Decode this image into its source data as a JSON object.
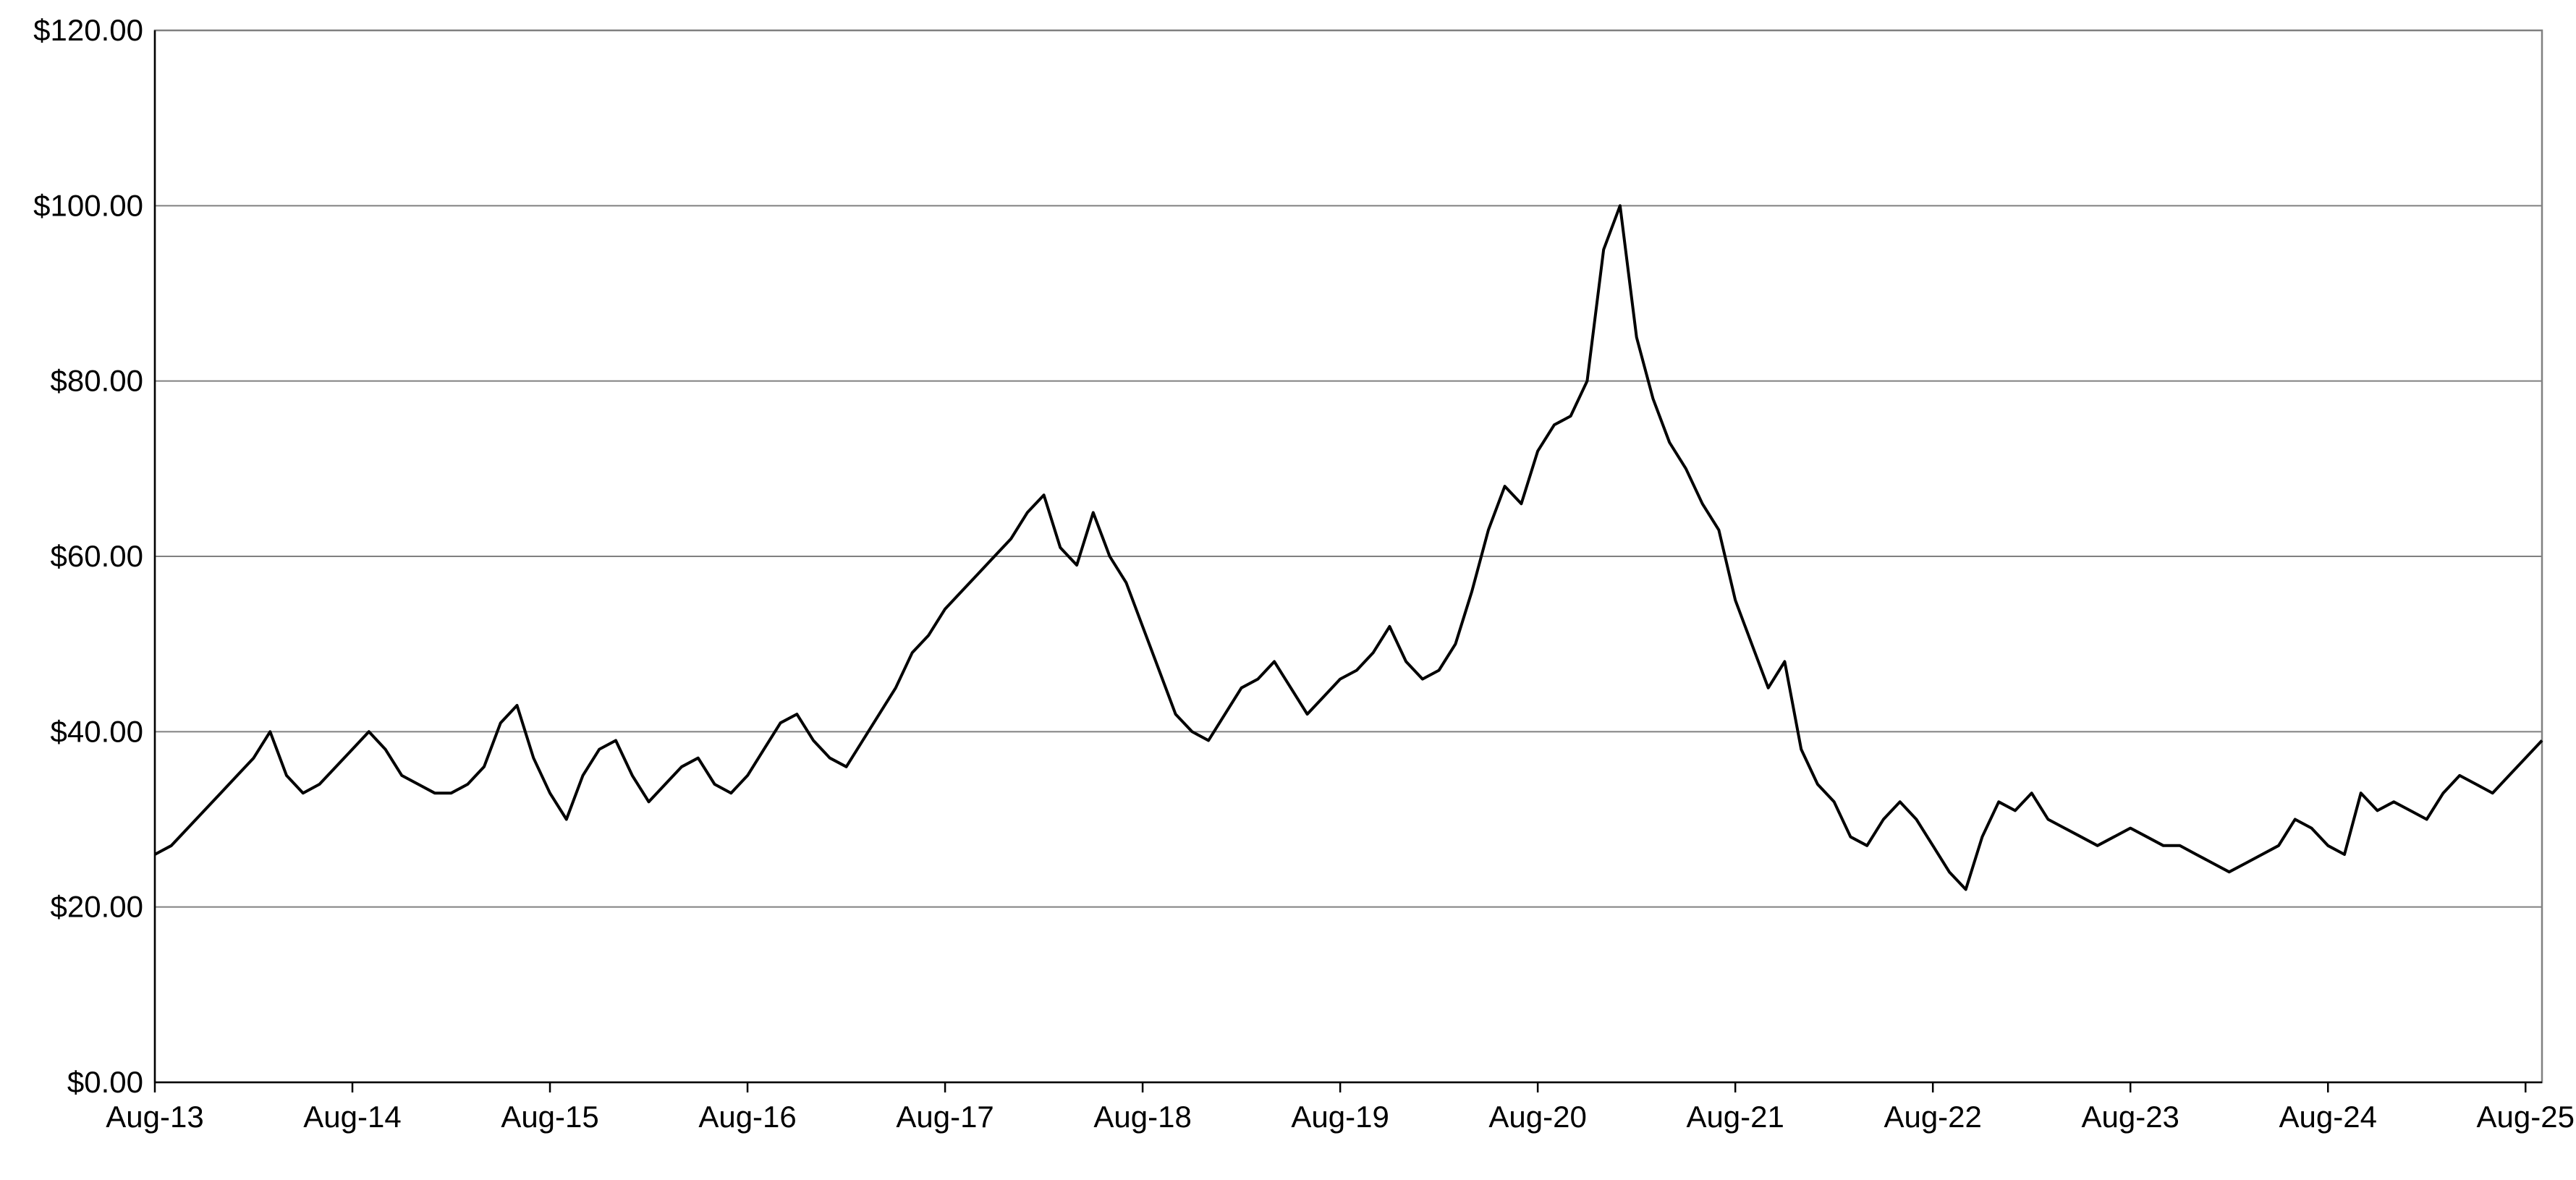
{
  "chart_data": {
    "type": "line",
    "title": "",
    "xlabel": "",
    "ylabel": "",
    "ylim": [
      0,
      120
    ],
    "y_ticks": [
      0,
      20,
      40,
      60,
      80,
      100,
      120
    ],
    "y_tick_labels": [
      "$0.00",
      "$20.00",
      "$40.00",
      "$60.00",
      "$80.00",
      "$100.00",
      "$120.00"
    ],
    "x_range": [
      "2013-08",
      "2025-09"
    ],
    "x_tick_labels": [
      "Aug-13",
      "Aug-14",
      "Aug-15",
      "Aug-16",
      "Aug-17",
      "Aug-18",
      "Aug-19",
      "Aug-20",
      "Aug-21",
      "Aug-22",
      "Aug-23",
      "Aug-24",
      "Aug-25"
    ],
    "grid": true,
    "legend": "none",
    "line_color": "#000000",
    "series": [
      {
        "x": [
          "2013-08",
          "2013-09",
          "2013-10",
          "2013-11",
          "2013-12",
          "2014-01",
          "2014-02",
          "2014-03",
          "2014-04",
          "2014-05",
          "2014-06",
          "2014-07",
          "2014-08",
          "2014-09",
          "2014-10",
          "2014-11",
          "2014-12",
          "2015-01",
          "2015-02",
          "2015-03",
          "2015-04",
          "2015-05",
          "2015-06",
          "2015-07",
          "2015-08",
          "2015-09",
          "2015-10",
          "2015-11",
          "2015-12",
          "2016-01",
          "2016-02",
          "2016-03",
          "2016-04",
          "2016-05",
          "2016-06",
          "2016-07",
          "2016-08",
          "2016-09",
          "2016-10",
          "2016-11",
          "2016-12",
          "2017-01",
          "2017-02",
          "2017-03",
          "2017-04",
          "2017-05",
          "2017-06",
          "2017-07",
          "2017-08",
          "2017-09",
          "2017-10",
          "2017-11",
          "2017-12",
          "2018-01",
          "2018-02",
          "2018-03",
          "2018-04",
          "2018-05",
          "2018-06",
          "2018-07",
          "2018-08",
          "2018-09",
          "2018-10",
          "2018-11",
          "2018-12",
          "2019-01",
          "2019-02",
          "2019-03",
          "2019-04",
          "2019-05",
          "2019-06",
          "2019-07",
          "2019-08",
          "2019-09",
          "2019-10",
          "2019-11",
          "2019-12",
          "2020-01",
          "2020-02",
          "2020-03",
          "2020-04",
          "2020-05",
          "2020-06",
          "2020-07",
          "2020-08",
          "2020-09",
          "2020-10",
          "2020-11",
          "2020-12",
          "2021-01",
          "2021-02",
          "2021-03",
          "2021-04",
          "2021-05",
          "2021-06",
          "2021-07",
          "2021-08",
          "2021-09",
          "2021-10",
          "2021-11",
          "2021-12",
          "2022-01",
          "2022-02",
          "2022-03",
          "2022-04",
          "2022-05",
          "2022-06",
          "2022-07",
          "2022-08",
          "2022-09",
          "2022-10",
          "2022-11",
          "2022-12",
          "2023-01",
          "2023-02",
          "2023-03",
          "2023-04",
          "2023-05",
          "2023-06",
          "2023-07",
          "2023-08",
          "2023-09",
          "2023-10",
          "2023-11",
          "2023-12",
          "2024-01",
          "2024-02",
          "2024-03",
          "2024-04",
          "2024-05",
          "2024-06",
          "2024-07",
          "2024-08",
          "2024-09",
          "2024-10",
          "2024-11",
          "2024-12",
          "2025-01",
          "2025-02",
          "2025-03",
          "2025-04",
          "2025-05",
          "2025-06",
          "2025-07",
          "2025-08",
          "2025-09"
        ],
        "values": [
          26,
          27,
          29,
          31,
          33,
          35,
          37,
          40,
          35,
          33,
          34,
          36,
          38,
          40,
          38,
          35,
          34,
          33,
          33,
          34,
          36,
          41,
          43,
          37,
          33,
          30,
          35,
          38,
          39,
          35,
          32,
          34,
          36,
          37,
          34,
          33,
          35,
          38,
          41,
          42,
          39,
          37,
          36,
          39,
          42,
          45,
          49,
          51,
          54,
          56,
          58,
          60,
          62,
          65,
          67,
          61,
          59,
          65,
          60,
          57,
          52,
          47,
          42,
          40,
          39,
          42,
          45,
          46,
          48,
          45,
          42,
          44,
          46,
          47,
          49,
          52,
          48,
          46,
          47,
          50,
          56,
          63,
          68,
          66,
          72,
          75,
          76,
          80,
          95,
          100,
          85,
          78,
          73,
          70,
          66,
          63,
          55,
          50,
          45,
          48,
          38,
          34,
          32,
          28,
          27,
          30,
          32,
          30,
          27,
          24,
          22,
          28,
          32,
          31,
          33,
          30,
          29,
          28,
          27,
          28,
          29,
          28,
          27,
          27,
          26,
          25,
          24,
          25,
          26,
          27,
          30,
          29,
          27,
          26,
          33,
          31,
          32,
          31,
          30,
          33,
          35,
          34,
          33,
          35,
          37,
          39
        ]
      }
    ]
  }
}
